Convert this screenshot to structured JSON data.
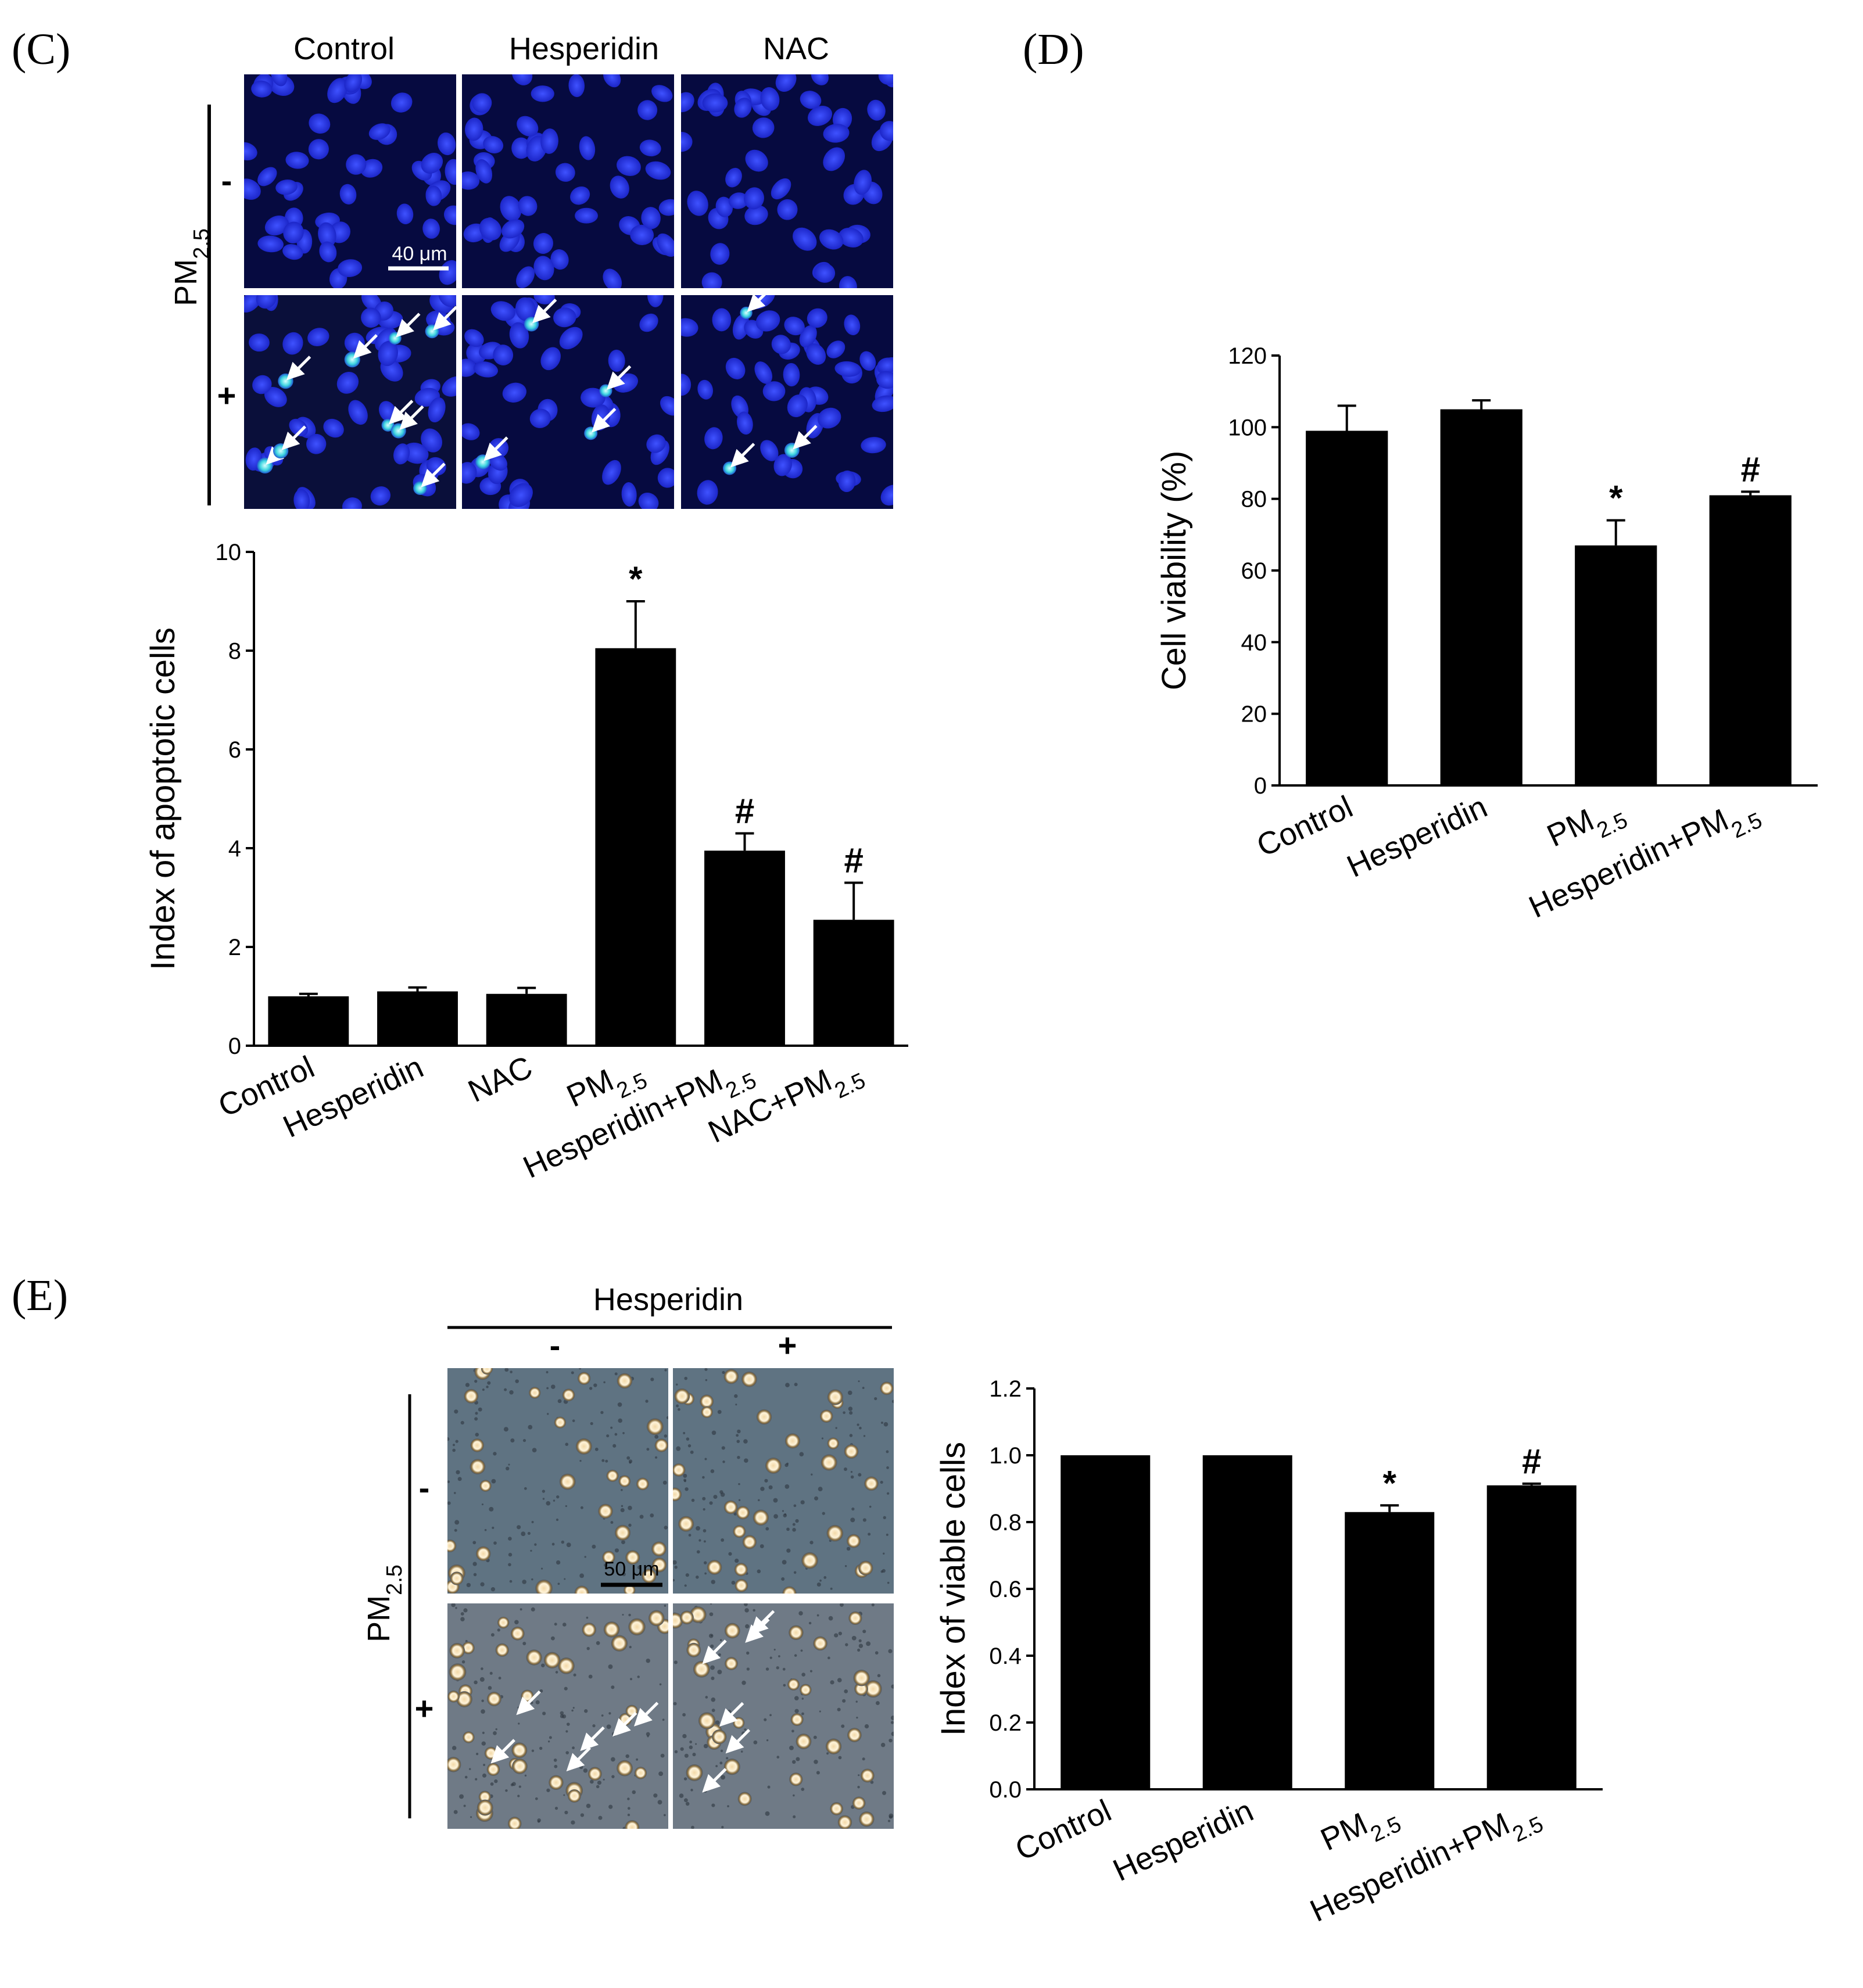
{
  "panels": {
    "C": {
      "label": "(C)",
      "micrograph": {
        "columns": [
          "Control",
          "Hesperidin",
          "NAC"
        ],
        "row_title_base": "PM",
        "row_title_sub": "2.5",
        "rows": [
          "-",
          "+"
        ],
        "scale_bar": "40 μm"
      }
    },
    "D": {
      "label": "(D)"
    },
    "E": {
      "label": "(E)",
      "micrograph": {
        "column_title": "Hesperidin",
        "columns": [
          "-",
          "+"
        ],
        "row_title_base": "PM",
        "row_title_sub": "2.5",
        "rows": [
          "-",
          "+"
        ],
        "scale_bar": "50 μm"
      }
    }
  },
  "chart_data": [
    {
      "id": "C",
      "type": "bar",
      "ylabel": "Index of apoptotic cells",
      "ylim": [
        0,
        10
      ],
      "yticks": [
        "0",
        "2",
        "4",
        "6",
        "8",
        "10"
      ],
      "categories": [
        {
          "base": "Control",
          "sub": "",
          "suffix": ""
        },
        {
          "base": "Hesperidin",
          "sub": "",
          "suffix": ""
        },
        {
          "base": "NAC",
          "sub": "",
          "suffix": ""
        },
        {
          "base": "PM",
          "sub": "2.5",
          "suffix": ""
        },
        {
          "base": "Hesperidin+PM",
          "sub": "2.5",
          "suffix": ""
        },
        {
          "base": "NAC+PM",
          "sub": "2.5",
          "suffix": ""
        }
      ],
      "values": [
        1.0,
        1.1,
        1.05,
        8.05,
        3.95,
        2.55
      ],
      "errors": [
        0.05,
        0.08,
        0.12,
        0.95,
        0.35,
        0.75
      ],
      "significance": [
        "",
        "",
        "",
        "*",
        "#",
        "#"
      ]
    },
    {
      "id": "D",
      "type": "bar",
      "ylabel": "Cell viability (%)",
      "ylim": [
        0,
        120
      ],
      "yticks": [
        "0",
        "20",
        "40",
        "60",
        "80",
        "100",
        "120"
      ],
      "categories": [
        {
          "base": "Control",
          "sub": "",
          "suffix": ""
        },
        {
          "base": "Hesperidin",
          "sub": "",
          "suffix": ""
        },
        {
          "base": "PM",
          "sub": "2.5",
          "suffix": ""
        },
        {
          "base": "Hesperidin+PM",
          "sub": "2.5",
          "suffix": ""
        }
      ],
      "values": [
        99,
        105,
        67,
        81
      ],
      "errors": [
        7,
        2.5,
        7,
        1
      ],
      "significance": [
        "",
        "",
        "*",
        "#"
      ]
    },
    {
      "id": "E",
      "type": "bar",
      "ylabel": "Index of viable cells",
      "ylim": [
        0,
        1.2
      ],
      "yticks": [
        "0.0",
        "0.2",
        "0.4",
        "0.6",
        "0.8",
        "1.0",
        "1.2"
      ],
      "categories": [
        {
          "base": "Control",
          "sub": "",
          "suffix": ""
        },
        {
          "base": "Hesperidin",
          "sub": "",
          "suffix": ""
        },
        {
          "base": "PM",
          "sub": "2.5",
          "suffix": ""
        },
        {
          "base": "Hesperidin+PM",
          "sub": "2.5",
          "suffix": ""
        }
      ],
      "values": [
        1.0,
        1.0,
        0.83,
        0.91
      ],
      "errors": [
        0,
        0,
        0.02,
        0.005
      ],
      "significance": [
        "",
        "",
        "*",
        "#"
      ]
    }
  ]
}
